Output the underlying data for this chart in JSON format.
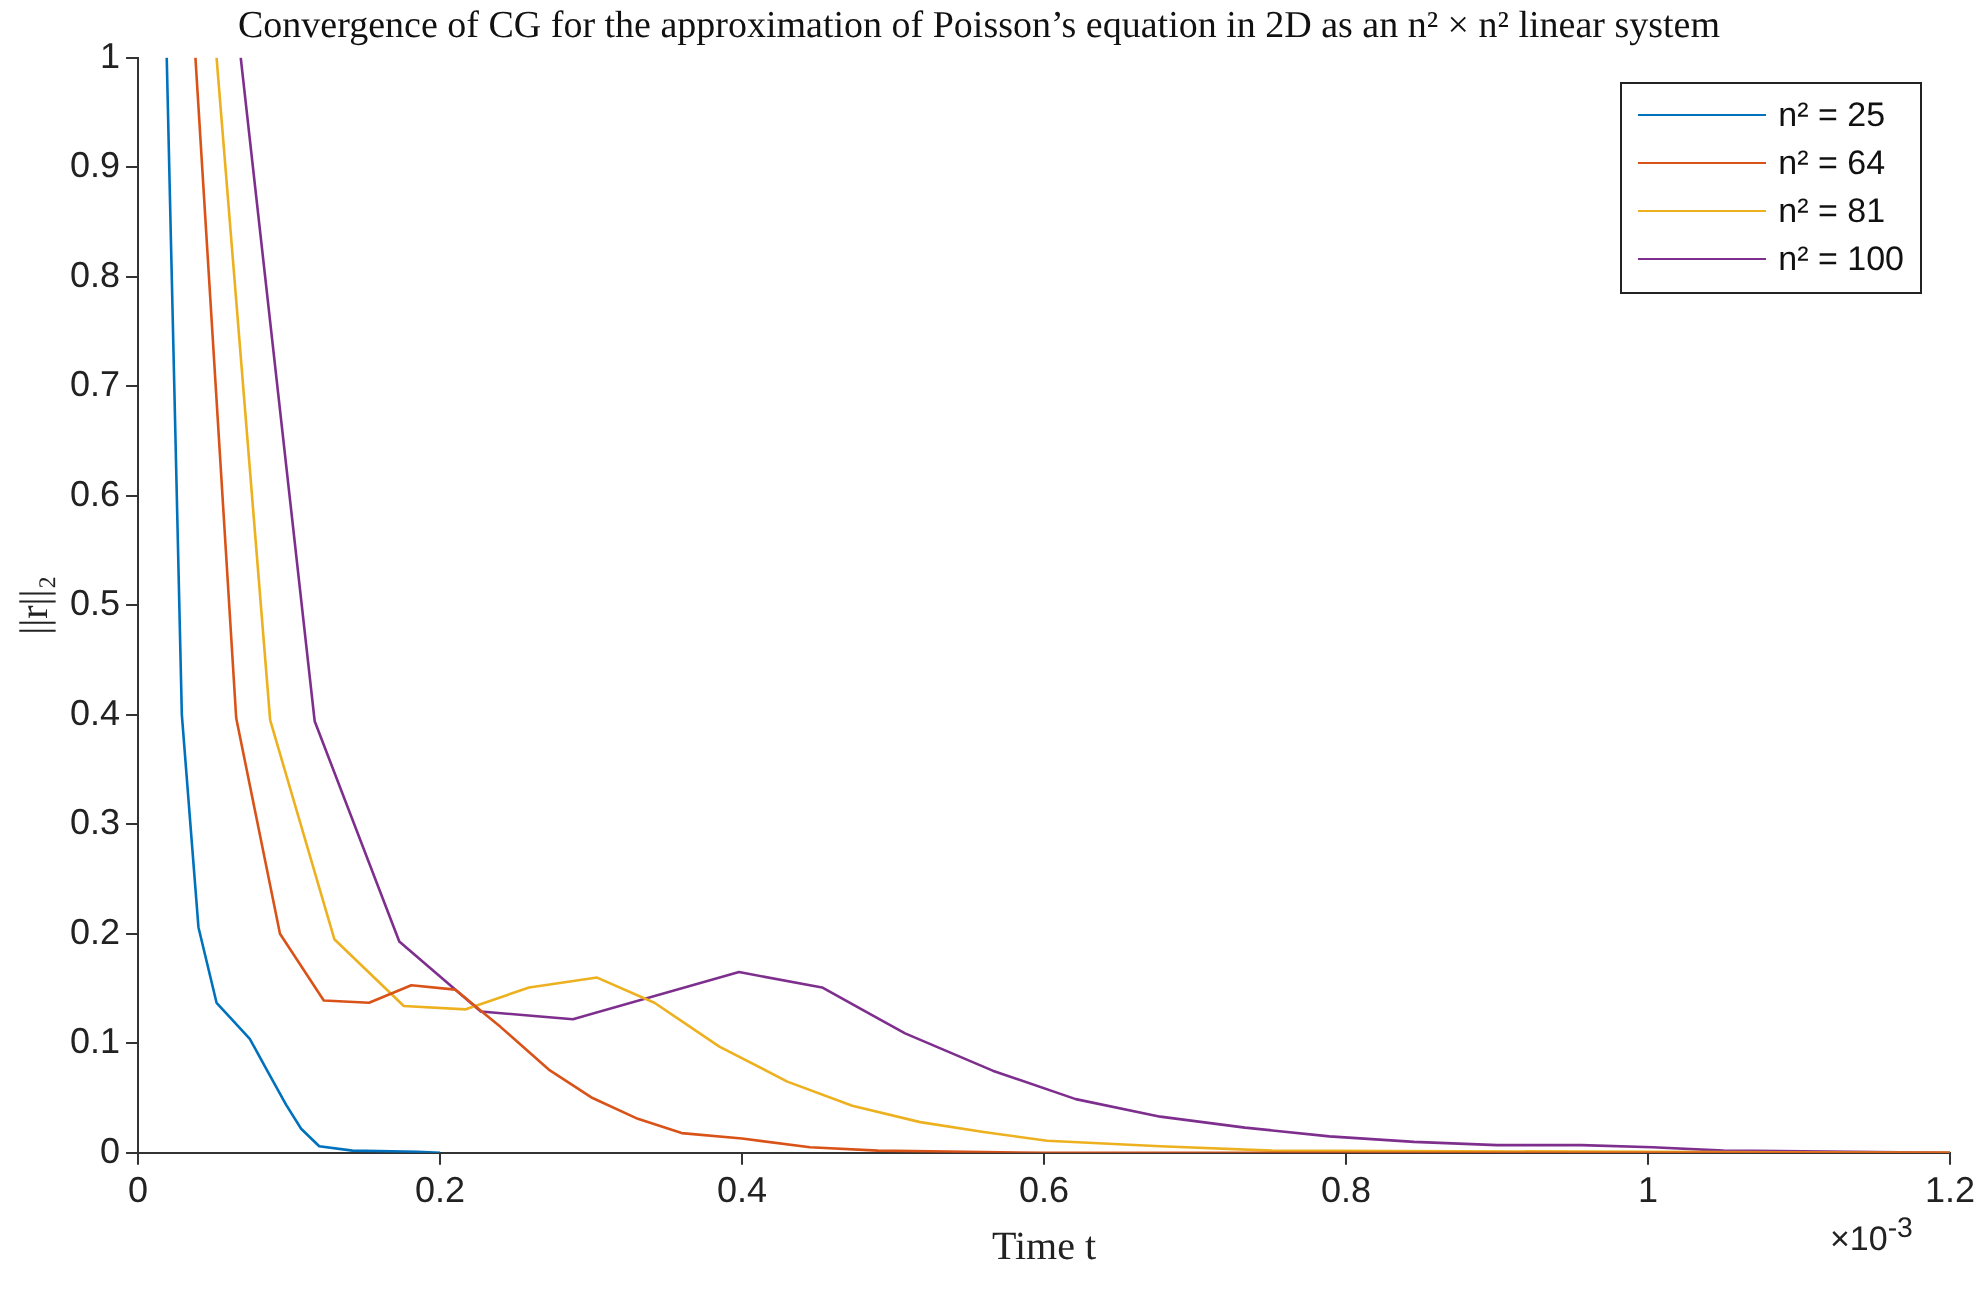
{
  "chart_data": {
    "type": "line",
    "title": "Convergence of CG for the approximation of Poisson’s equation in 2D as an n² × n² linear system",
    "xlabel": "Time t",
    "ylabel": "||r||₂",
    "xlim": [
      0,
      1.2
    ],
    "xticks": [
      0,
      0.2,
      0.4,
      0.6,
      0.8,
      1,
      1.2
    ],
    "ylim": [
      0,
      1
    ],
    "yticks": [
      0,
      0.1,
      0.2,
      0.3,
      0.4,
      0.5,
      0.6,
      0.7,
      0.8,
      0.9,
      1
    ],
    "grid": false,
    "legend": "top right",
    "marker": "none",
    "line_style": "solid",
    "annotations": [
      "×10$^{-3}$"
    ],
    "series": [
      {
        "name": "n² = 25",
        "color": "#0072bd",
        "x": [
          0.019,
          0.029,
          0.04,
          0.052,
          0.074,
          0.086,
          0.098,
          0.108,
          0.12,
          0.142,
          0.185,
          0.2
        ],
        "values": [
          1,
          0.4,
          0.206,
          0.137,
          0.104,
          0.074,
          0.044,
          0.022,
          0.006,
          0.002,
          0.001,
          0
        ]
      },
      {
        "name": "n² = 64",
        "color": "#d95319",
        "x": [
          0.038,
          0.065,
          0.094,
          0.123,
          0.153,
          0.181,
          0.21,
          0.24,
          0.272,
          0.301,
          0.331,
          0.36,
          0.4,
          0.445,
          0.49,
          0.6,
          1.2
        ],
        "values": [
          1,
          0.397,
          0.2,
          0.139,
          0.137,
          0.153,
          0.149,
          0.115,
          0.076,
          0.05,
          0.031,
          0.018,
          0.013,
          0.005,
          0.002,
          0,
          0
        ]
      },
      {
        "name": "n² = 81",
        "color": "#edb120",
        "x": [
          0.052,
          0.0875,
          0.13,
          0.176,
          0.217,
          0.259,
          0.304,
          0.342,
          0.385,
          0.43,
          0.473,
          0.518,
          0.56,
          0.602,
          0.677,
          0.751,
          1.2
        ],
        "values": [
          1,
          0.395,
          0.195,
          0.134,
          0.131,
          0.151,
          0.16,
          0.137,
          0.097,
          0.065,
          0.043,
          0.028,
          0.019,
          0.011,
          0.006,
          0.002,
          0
        ]
      },
      {
        "name": "n² = 100",
        "color": "#7e2f8e",
        "x": [
          0.068,
          0.117,
          0.173,
          0.227,
          0.288,
          0.398,
          0.453,
          0.508,
          0.566,
          0.621,
          0.677,
          0.733,
          0.789,
          0.845,
          0.9,
          0.956,
          1.003,
          1.05,
          1.2
        ],
        "values": [
          1,
          0.394,
          0.193,
          0.129,
          0.122,
          0.165,
          0.151,
          0.109,
          0.075,
          0.049,
          0.033,
          0.023,
          0.015,
          0.01,
          0.007,
          0.007,
          0.005,
          0.002,
          0
        ]
      }
    ]
  }
}
